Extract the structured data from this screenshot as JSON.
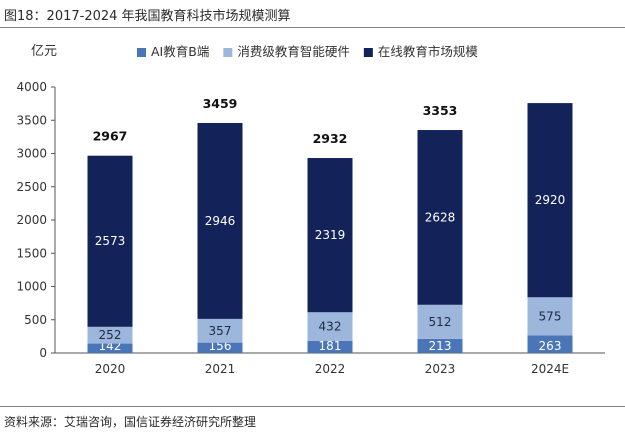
{
  "title": "图18：2017-2024 年我国教育科技市场规模测算",
  "source": "资料来源：艾瑞咨询，国信证券经济研究所整理",
  "chart_data": {
    "type": "bar",
    "stacked": true,
    "unit_label": "亿元",
    "categories": [
      "2020",
      "2021",
      "2022",
      "2023",
      "2024E"
    ],
    "series": [
      {
        "name": "AI教育B端",
        "color": "#4a76b8",
        "values": [
          142,
          156,
          181,
          213,
          263
        ]
      },
      {
        "name": "消费级教育智能硬件",
        "color": "#9db6dc",
        "values": [
          252,
          357,
          432,
          512,
          575
        ]
      },
      {
        "name": "在线教育市场规模",
        "color": "#13235a",
        "values": [
          2573,
          2946,
          2319,
          2628,
          2920
        ]
      }
    ],
    "totals": [
      2967,
      3459,
      2932,
      3353,
      null
    ],
    "yticks": [
      0,
      500,
      1000,
      1500,
      2000,
      2500,
      3000,
      3500,
      4000
    ],
    "ylim": [
      0,
      4000
    ],
    "legend_position": "top",
    "grid": false
  }
}
